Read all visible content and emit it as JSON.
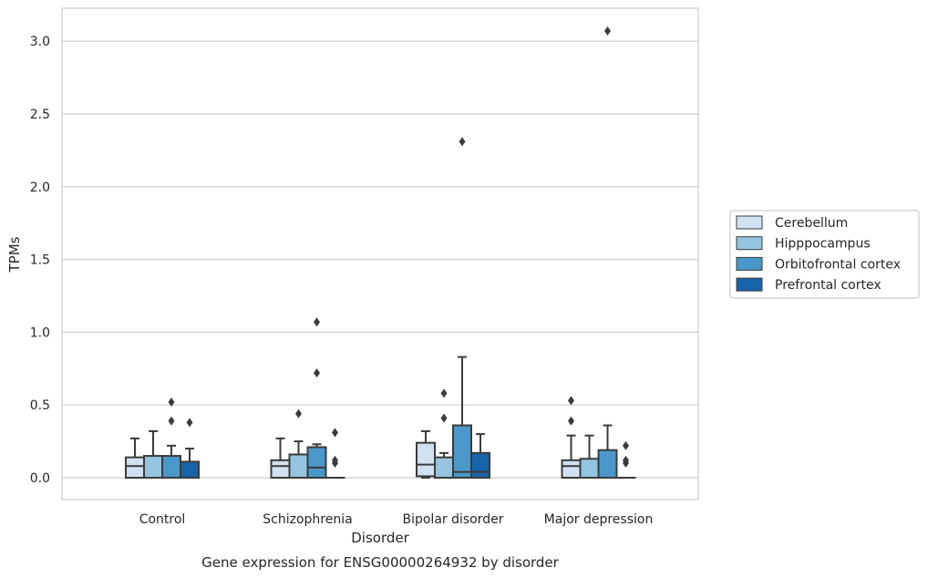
{
  "chart_data": {
    "type": "box",
    "title": "",
    "caption": "Gene expression for ENSG00000264932 by disorder",
    "xlabel": "Disorder",
    "ylabel": "TPMs",
    "ylim": [
      -0.15,
      3.23
    ],
    "yticks": [
      0.0,
      0.5,
      1.0,
      1.5,
      2.0,
      2.5,
      3.0
    ],
    "ytick_labels": [
      "0.0",
      "0.5",
      "1.0",
      "1.5",
      "2.0",
      "2.5",
      "3.0"
    ],
    "grid": "horizontal",
    "legend_position": "right",
    "categories": [
      "Control",
      "Schizophrenia",
      "Bipolar disorder",
      "Major depression"
    ],
    "series": [
      {
        "name": "Cerebellum",
        "color": "#d0e1f2",
        "boxes": [
          {
            "min": 0.0,
            "q1": 0.0,
            "median": 0.08,
            "q3": 0.14,
            "max": 0.27,
            "outliers": []
          },
          {
            "min": 0.0,
            "q1": 0.0,
            "median": 0.08,
            "q3": 0.12,
            "max": 0.27,
            "outliers": []
          },
          {
            "min": 0.0,
            "q1": 0.01,
            "median": 0.09,
            "q3": 0.24,
            "max": 0.32,
            "outliers": []
          },
          {
            "min": 0.0,
            "q1": 0.0,
            "median": 0.08,
            "q3": 0.12,
            "max": 0.29,
            "outliers": [
              0.39,
              0.53
            ]
          }
        ]
      },
      {
        "name": "Hipppocampus",
        "color": "#94c4df",
        "boxes": [
          {
            "min": 0.0,
            "q1": 0.0,
            "median": 0.0,
            "q3": 0.15,
            "max": 0.32,
            "outliers": []
          },
          {
            "min": 0.0,
            "q1": 0.0,
            "median": 0.0,
            "q3": 0.16,
            "max": 0.25,
            "outliers": [
              0.44
            ]
          },
          {
            "min": 0.0,
            "q1": 0.0,
            "median": 0.0,
            "q3": 0.14,
            "max": 0.17,
            "outliers": [
              0.41,
              0.58
            ]
          },
          {
            "min": 0.0,
            "q1": 0.0,
            "median": 0.0,
            "q3": 0.13,
            "max": 0.29,
            "outliers": []
          }
        ]
      },
      {
        "name": "Orbitofrontal cortex",
        "color": "#4a98c9",
        "boxes": [
          {
            "min": 0.0,
            "q1": 0.0,
            "median": 0.0,
            "q3": 0.15,
            "max": 0.22,
            "outliers": [
              0.39,
              0.52
            ]
          },
          {
            "min": 0.0,
            "q1": 0.0,
            "median": 0.07,
            "q3": 0.21,
            "max": 0.23,
            "outliers": [
              0.72,
              1.07
            ]
          },
          {
            "min": 0.0,
            "q1": 0.0,
            "median": 0.04,
            "q3": 0.36,
            "max": 0.83,
            "outliers": [
              2.31
            ]
          },
          {
            "min": 0.0,
            "q1": 0.0,
            "median": 0.0,
            "q3": 0.19,
            "max": 0.36,
            "outliers": [
              3.07
            ]
          }
        ]
      },
      {
        "name": "Prefrontal cortex",
        "color": "#1764ab",
        "boxes": [
          {
            "min": 0.0,
            "q1": 0.0,
            "median": 0.0,
            "q3": 0.11,
            "max": 0.2,
            "outliers": [
              0.38
            ]
          },
          {
            "min": 0.0,
            "q1": 0.0,
            "median": 0.0,
            "q3": 0.0,
            "max": 0.0,
            "outliers": [
              0.1,
              0.12,
              0.31
            ]
          },
          {
            "min": 0.0,
            "q1": 0.0,
            "median": 0.04,
            "q3": 0.17,
            "max": 0.3,
            "outliers": []
          },
          {
            "min": 0.0,
            "q1": 0.0,
            "median": 0.0,
            "q3": 0.0,
            "max": 0.0,
            "outliers": [
              0.1,
              0.12,
              0.22
            ]
          }
        ]
      }
    ]
  }
}
